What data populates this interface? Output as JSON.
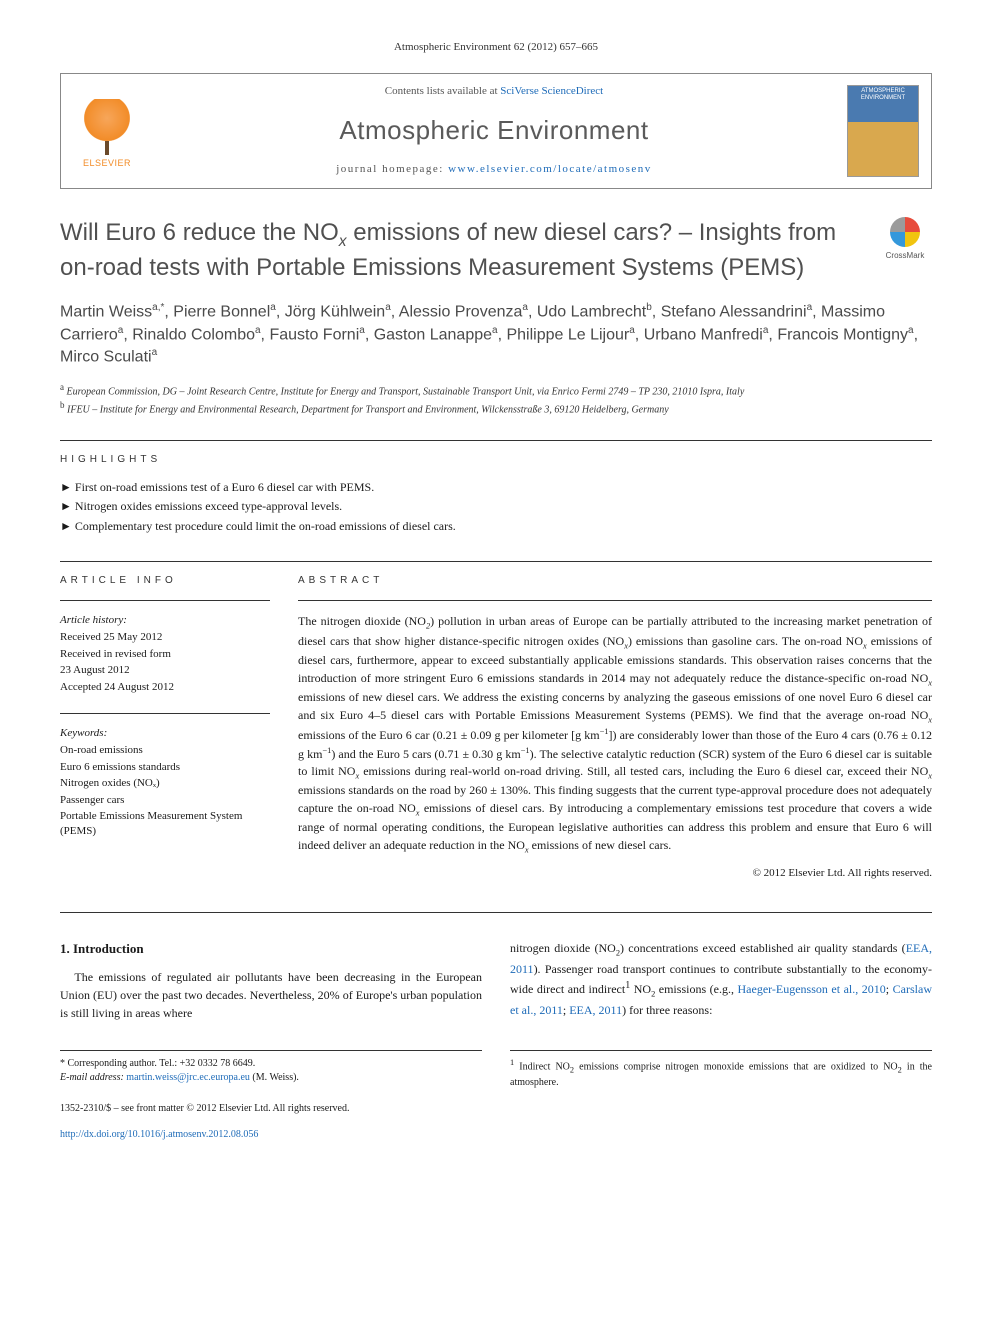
{
  "journal_ref": "Atmospheric Environment 62 (2012) 657–665",
  "header": {
    "publisher_logo_text": "ELSEVIER",
    "contents_prefix": "Contents lists available at ",
    "contents_link": "SciVerse ScienceDirect",
    "journal_name": "Atmospheric Environment",
    "homepage_prefix": "journal homepage: ",
    "homepage_url": "www.elsevier.com/locate/atmosenv",
    "cover_label": "ATMOSPHERIC ENVIRONMENT"
  },
  "crossmark_label": "CrossMark",
  "title_html": "Will Euro 6 reduce the NO<sub>x</sub> emissions of new diesel cars? – Insights from on-road tests with Portable Emissions Measurement Systems (PEMS)",
  "authors_html": "Martin Weiss<sup>a,*</sup>, Pierre Bonnel<sup>a</sup>, Jörg Kühlwein<sup>a</sup>, Alessio Provenza<sup>a</sup>, Udo Lambrecht<sup>b</sup>, Stefano Alessandrini<sup>a</sup>, Massimo Carriero<sup>a</sup>, Rinaldo Colombo<sup>a</sup>, Fausto Forni<sup>a</sup>, Gaston Lanappe<sup>a</sup>, Philippe Le Lijour<sup>a</sup>, Urbano Manfredi<sup>a</sup>, Francois Montigny<sup>a</sup>, Mirco Sculati<sup>a</sup>",
  "affiliations": [
    {
      "marker": "a",
      "text": "European Commission, DG – Joint Research Centre, Institute for Energy and Transport, Sustainable Transport Unit, via Enrico Fermi 2749 – TP 230, 21010 Ispra, Italy"
    },
    {
      "marker": "b",
      "text": "IFEU – Institute for Energy and Environmental Research, Department for Transport and Environment, Wilckensstraße 3, 69120 Heidelberg, Germany"
    }
  ],
  "section_labels": {
    "highlights": "HIGHLIGHTS",
    "article_info": "ARTICLE INFO",
    "abstract": "ABSTRACT"
  },
  "highlights": [
    "First on-road emissions test of a Euro 6 diesel car with PEMS.",
    "Nitrogen oxides emissions exceed type-approval levels.",
    "Complementary test procedure could limit the on-road emissions of diesel cars."
  ],
  "article_info": {
    "history_head": "Article history:",
    "history": [
      "Received 25 May 2012",
      "Received in revised form",
      "23 August 2012",
      "Accepted 24 August 2012"
    ],
    "keywords_head": "Keywords:",
    "keywords": [
      "On-road emissions",
      "Euro 6 emissions standards",
      "Nitrogen oxides (NOₓ)",
      "Passenger cars",
      "Portable Emissions Measurement System (PEMS)"
    ]
  },
  "abstract_html": "The nitrogen dioxide (NO<sub>2</sub>) pollution in urban areas of Europe can be partially attributed to the increasing market penetration of diesel cars that show higher distance-specific nitrogen oxides (NO<sub>x</sub>) emissions than gasoline cars. The on-road NO<sub>x</sub> emissions of diesel cars, furthermore, appear to exceed substantially applicable emissions standards. This observation raises concerns that the introduction of more stringent Euro 6 emissions standards in 2014 may not adequately reduce the distance-specific on-road NO<sub>x</sub> emissions of new diesel cars. We address the existing concerns by analyzing the gaseous emissions of one novel Euro 6 diesel car and six Euro 4–5 diesel cars with Portable Emissions Measurement Systems (PEMS). We find that the average on-road NO<sub>x</sub> emissions of the Euro 6 car (0.21 ± 0.09 g per kilometer [g km<sup>−1</sup>]) are considerably lower than those of the Euro 4 cars (0.76 ± 0.12 g km<sup>−1</sup>) and the Euro 5 cars (0.71 ± 0.30 g km<sup>−1</sup>). The selective catalytic reduction (SCR) system of the Euro 6 diesel car is suitable to limit NO<sub>x</sub> emissions during real-world on-road driving. Still, all tested cars, including the Euro 6 diesel car, exceed their NO<sub>x</sub> emissions standards on the road by 260 ± 130%. This finding suggests that the current type-approval procedure does not adequately capture the on-road NO<sub>x</sub> emissions of diesel cars. By introducing a complementary emissions test procedure that covers a wide range of normal operating conditions, the European legislative authorities can address this problem and ensure that Euro 6 will indeed deliver an adequate reduction in the NO<sub>x</sub> emissions of new diesel cars.",
  "copyright_line": "© 2012 Elsevier Ltd. All rights reserved.",
  "intro": {
    "heading": "1. Introduction",
    "para1_html": "The emissions of regulated air pollutants have been decreasing in the European Union (EU) over the past two decades. Nevertheless, 20% of Europe's urban population is still living in areas where",
    "para2_html": "nitrogen dioxide (NO<sub>2</sub>) concentrations exceed established air quality standards (<span class=\"link\">EEA, 2011</span>). Passenger road transport continues to contribute substantially to the economy-wide direct and indirect<sup>1</sup> NO<sub>2</sub> emissions (e.g., <span class=\"link\">Haeger-Eugensson et al., 2010</span>; <span class=\"link\">Carslaw et al., 2011</span>; <span class=\"link\">EEA, 2011</span>) for three reasons:"
  },
  "footnotes": {
    "corresponding": "* Corresponding author. Tel.: +32 0332 78 6649.",
    "email_label": "E-mail address: ",
    "email": "martin.weiss@jrc.ec.europa.eu",
    "email_suffix": " (M. Weiss).",
    "note1_html": "<sup>1</sup> Indirect NO<sub>2</sub> emissions comprise nitrogen monoxide emissions that are oxidized to NO<sub>2</sub> in the atmosphere."
  },
  "bottom": {
    "issn_line": "1352-2310/$ – see front matter © 2012 Elsevier Ltd. All rights reserved.",
    "doi_url": "http://dx.doi.org/10.1016/j.atmosenv.2012.08.056"
  },
  "colors": {
    "link": "#1e6bb8",
    "title_gray": "#505050",
    "elsevier_orange": "#f28c28"
  }
}
